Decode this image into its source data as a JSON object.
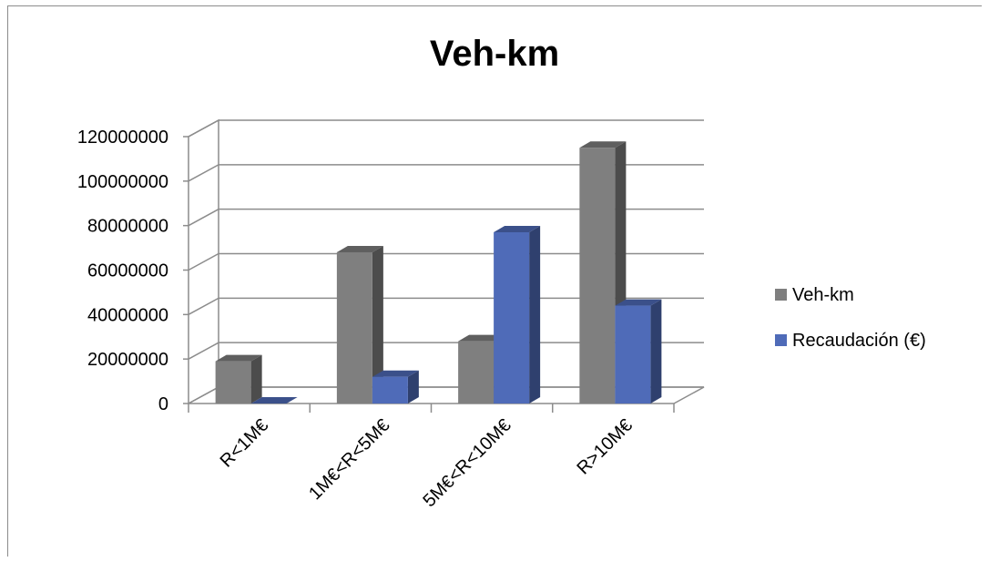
{
  "chart_data": {
    "type": "bar",
    "title": "Veh-km",
    "xlabel": "",
    "ylabel": "",
    "ylim": [
      0,
      120000000
    ],
    "yticks": [
      0,
      20000000,
      40000000,
      60000000,
      80000000,
      100000000,
      120000000
    ],
    "categories": [
      "R<1M€",
      "1M€<R<5M€",
      "5M€<R<10M€",
      "R>10M€"
    ],
    "series": [
      {
        "name": "Veh-km",
        "color": "#7f7f7f",
        "values": [
          19000000,
          68000000,
          28000000,
          115000000
        ]
      },
      {
        "name": "Recaudación (€)",
        "color": "#4f6bb8",
        "values": [
          0,
          12000000,
          77000000,
          44000000
        ]
      }
    ],
    "grid": true,
    "legend_position": "right",
    "style": "3d-clustered-column"
  }
}
